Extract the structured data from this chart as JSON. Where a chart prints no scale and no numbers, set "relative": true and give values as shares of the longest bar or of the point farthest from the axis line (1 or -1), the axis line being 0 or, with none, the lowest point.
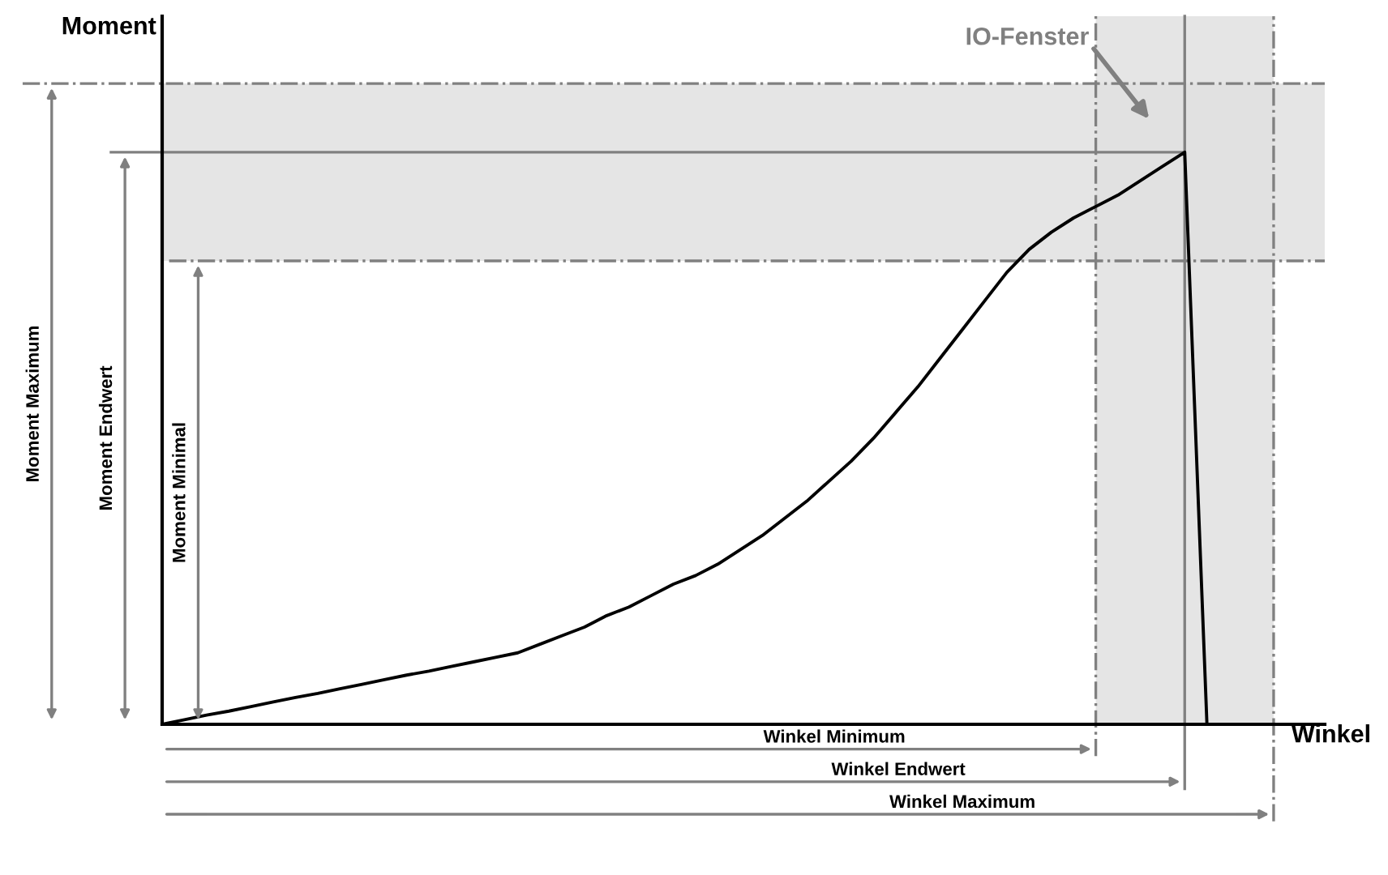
{
  "chart_data": {
    "type": "line",
    "relative": true,
    "xlabel": "Winkel",
    "ylabel": "Moment",
    "categories": [
      null,
      null,
      null,
      null,
      null,
      null,
      null,
      null,
      null,
      null,
      null,
      null,
      null,
      null,
      null,
      null,
      null,
      null,
      null,
      null,
      null,
      null,
      null,
      null,
      null,
      null,
      null,
      null,
      null,
      null,
      null,
      null,
      null,
      null,
      null,
      null,
      null,
      null,
      null,
      null,
      null,
      null,
      null,
      null,
      null,
      null,
      null,
      null,
      null,
      null,
      null
    ],
    "series": [
      {
        "color": "#000000",
        "values": [
          0,
          0.008,
          0.016,
          0.023,
          0.031,
          0.039,
          0.047,
          0.054,
          0.062,
          0.07,
          0.078,
          0.086,
          0.093,
          0.101,
          0.109,
          0.117,
          0.125,
          0.14,
          0.155,
          0.17,
          0.19,
          0.205,
          0.225,
          0.245,
          0.26,
          0.28,
          0.305,
          0.33,
          0.36,
          0.39,
          0.425,
          0.46,
          0.5,
          0.545,
          0.59,
          0.64,
          0.69,
          0.74,
          0.79,
          0.83,
          0.86,
          0.885,
          0.905,
          0.925,
          0.95,
          0.975,
          1,
          0,
          0,
          0,
          0
        ]
      }
    ],
    "bands": [
      {
        "axis": "y",
        "from": 0.81,
        "to": 1.12,
        "color": "#e0e0e0"
      }
    ],
    "ref_lines": [
      {
        "axis": "y",
        "value": 1.12,
        "line_style": "dashdot",
        "color": "#808080"
      },
      {
        "axis": "y",
        "value": 1,
        "line_style": "solid",
        "color": "#808080"
      },
      {
        "axis": "y",
        "value": 0.81,
        "line_style": "dashdot",
        "color": "#808080"
      }
    ],
    "annotations": [
      "Moment Maximum",
      "Moment Endwert",
      "Moment Minimal",
      "Winkel Minimum",
      "Winkel Endwert",
      "Winkel Maximum",
      "IO-Fenster"
    ],
    "grid": false,
    "marker": "none",
    "line_style": "solid"
  }
}
